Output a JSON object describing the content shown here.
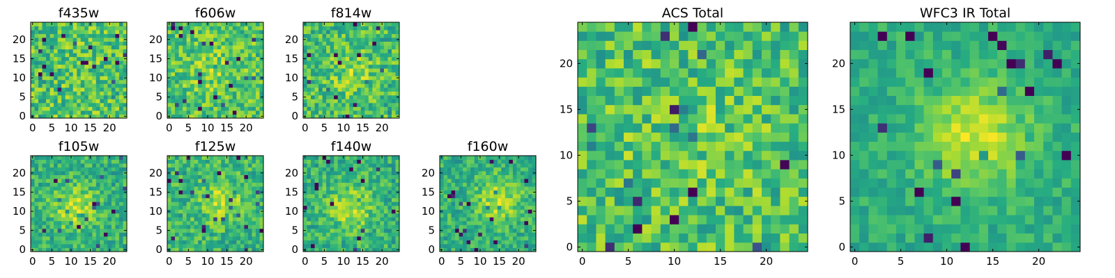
{
  "chart_data": [
    {
      "type": "heatmap",
      "title": "f435w",
      "grid_size": 25,
      "xlim": [
        0,
        24
      ],
      "ylim": [
        0,
        24
      ],
      "xticks": [
        0,
        5,
        10,
        15,
        20
      ],
      "yticks": [
        0,
        5,
        10,
        15,
        20
      ],
      "colormap": "viridis",
      "grid": false
    },
    {
      "type": "heatmap",
      "title": "f606w",
      "grid_size": 25,
      "xlim": [
        0,
        24
      ],
      "ylim": [
        0,
        24
      ],
      "xticks": [
        0,
        5,
        10,
        15,
        20
      ],
      "yticks": [
        0,
        5,
        10,
        15,
        20
      ],
      "colormap": "viridis",
      "grid": false
    },
    {
      "type": "heatmap",
      "title": "f814w",
      "grid_size": 25,
      "xlim": [
        0,
        24
      ],
      "ylim": [
        0,
        24
      ],
      "xticks": [
        0,
        5,
        10,
        15,
        20
      ],
      "yticks": [
        0,
        5,
        10,
        15,
        20
      ],
      "colormap": "viridis",
      "grid": false
    },
    {
      "type": "heatmap",
      "title": "f105w",
      "grid_size": 25,
      "xlim": [
        0,
        24
      ],
      "ylim": [
        0,
        24
      ],
      "xticks": [
        0,
        5,
        10,
        15,
        20
      ],
      "yticks": [
        0,
        5,
        10,
        15,
        20
      ],
      "colormap": "viridis",
      "grid": false
    },
    {
      "type": "heatmap",
      "title": "f125w",
      "grid_size": 25,
      "xlim": [
        0,
        24
      ],
      "ylim": [
        0,
        24
      ],
      "xticks": [
        0,
        5,
        10,
        15,
        20
      ],
      "yticks": [
        0,
        5,
        10,
        15,
        20
      ],
      "colormap": "viridis",
      "grid": false
    },
    {
      "type": "heatmap",
      "title": "f140w",
      "grid_size": 25,
      "xlim": [
        0,
        24
      ],
      "ylim": [
        0,
        24
      ],
      "xticks": [
        0,
        5,
        10,
        15,
        20
      ],
      "yticks": [
        0,
        5,
        10,
        15,
        20
      ],
      "colormap": "viridis",
      "grid": false
    },
    {
      "type": "heatmap",
      "title": "f160w",
      "grid_size": 25,
      "xlim": [
        0,
        24
      ],
      "ylim": [
        0,
        24
      ],
      "xticks": [
        0,
        5,
        10,
        15,
        20
      ],
      "yticks": [
        0,
        5,
        10,
        15,
        20
      ],
      "colormap": "viridis",
      "grid": false
    },
    {
      "type": "heatmap",
      "title": "ACS Total",
      "grid_size": 25,
      "xlim": [
        0,
        24
      ],
      "ylim": [
        0,
        24
      ],
      "xticks": [
        0,
        5,
        10,
        15,
        20
      ],
      "yticks": [
        0,
        5,
        10,
        15,
        20
      ],
      "colormap": "viridis",
      "grid": false
    },
    {
      "type": "heatmap",
      "title": "WFC3 IR Total",
      "grid_size": 25,
      "xlim": [
        0,
        24
      ],
      "ylim": [
        0,
        24
      ],
      "xticks": [
        0,
        5,
        10,
        15,
        20
      ],
      "yticks": [
        0,
        5,
        10,
        15,
        20
      ],
      "colormap": "viridis",
      "grid": false
    }
  ],
  "colors": {
    "viridis": [
      "#440154",
      "#3b528b",
      "#21918c",
      "#27ad81",
      "#5ec962",
      "#addc30",
      "#fde725"
    ]
  }
}
